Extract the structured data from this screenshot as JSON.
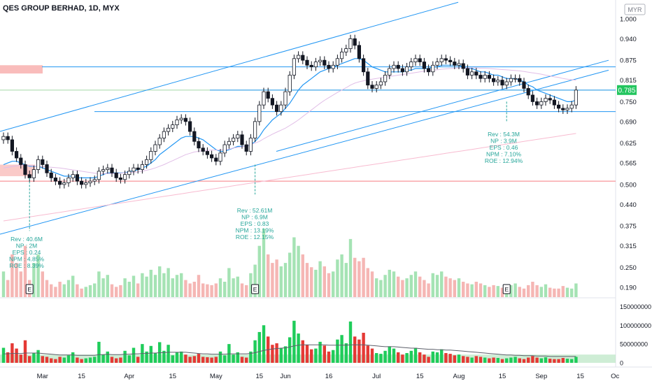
{
  "header": {
    "title": "QES GROUP BERHAD, 1D, MYX",
    "currency": "MYR"
  },
  "colors": {
    "up": "#26a69a",
    "down": "#ef5350",
    "candle_up_fill": "#ffffff",
    "candle_stroke": "#131722",
    "channel": "#2196f3",
    "ma_fast": "#2196f3",
    "ma_slow": "#e1bee7",
    "ma_long": "#f8bbd0",
    "support": "#f77c80",
    "price_tag": "#22c55e",
    "vol_up": "#a5e3b4",
    "vol_down": "#f5b6b4",
    "fund_text": "#26a69a"
  },
  "chart_data": [
    {
      "type": "candlestick",
      "title": "QES GROUP BERHAD, 1D, MYX",
      "ylim": [
        0.16,
        1.04
      ],
      "y_ticks": [
        "1.000",
        "0.940",
        "0.875",
        "0.815",
        "0.750",
        "0.690",
        "0.625",
        "0.565",
        "0.500",
        "0.440",
        "0.375",
        "0.315",
        "0.250",
        "0.190"
      ],
      "x_ticks": [
        "Mar",
        "15",
        "Apr",
        "15",
        "May",
        "15",
        "Jun",
        "16",
        "Jul",
        "15",
        "Aug",
        "15",
        "Sep",
        "15",
        "Oc"
      ],
      "last_price": "0.785",
      "close": [
        0.645,
        0.635,
        0.6,
        0.58,
        0.56,
        0.53,
        0.52,
        0.545,
        0.575,
        0.56,
        0.535,
        0.52,
        0.51,
        0.5,
        0.505,
        0.52,
        0.53,
        0.51,
        0.5,
        0.505,
        0.51,
        0.515,
        0.54,
        0.545,
        0.55,
        0.535,
        0.52,
        0.515,
        0.53,
        0.54,
        0.55,
        0.545,
        0.56,
        0.575,
        0.6,
        0.62,
        0.64,
        0.66,
        0.67,
        0.68,
        0.695,
        0.7,
        0.69,
        0.66,
        0.63,
        0.61,
        0.6,
        0.59,
        0.58,
        0.57,
        0.595,
        0.62,
        0.63,
        0.64,
        0.65,
        0.62,
        0.6,
        0.64,
        0.69,
        0.74,
        0.78,
        0.76,
        0.74,
        0.72,
        0.74,
        0.78,
        0.83,
        0.88,
        0.89,
        0.875,
        0.86,
        0.855,
        0.87,
        0.875,
        0.86,
        0.85,
        0.86,
        0.88,
        0.9,
        0.91,
        0.94,
        0.92,
        0.88,
        0.84,
        0.8,
        0.79,
        0.8,
        0.81,
        0.83,
        0.85,
        0.86,
        0.85,
        0.84,
        0.855,
        0.87,
        0.88,
        0.87,
        0.85,
        0.84,
        0.86,
        0.87,
        0.88,
        0.875,
        0.87,
        0.86,
        0.865,
        0.85,
        0.83,
        0.84,
        0.83,
        0.82,
        0.83,
        0.82,
        0.81,
        0.815,
        0.8,
        0.81,
        0.82,
        0.82,
        0.81,
        0.79,
        0.77,
        0.75,
        0.74,
        0.75,
        0.76,
        0.755,
        0.74,
        0.73,
        0.725,
        0.73,
        0.74,
        0.785
      ],
      "series": [
        {
          "name": "",
          "values": [
            0.56,
            0.565,
            0.57,
            0.57,
            0.565,
            0.56,
            0.555,
            0.555,
            0.555,
            0.55,
            0.545,
            0.54,
            0.535,
            0.53,
            0.525,
            0.525,
            0.525,
            0.52,
            0.52,
            0.52,
            0.52,
            0.52,
            0.525,
            0.53,
            0.535,
            0.535,
            0.535,
            0.535,
            0.535,
            0.54,
            0.54,
            0.545,
            0.55,
            0.555,
            0.565,
            0.575,
            0.59,
            0.6,
            0.61,
            0.62,
            0.63,
            0.64,
            0.645,
            0.645,
            0.645,
            0.64,
            0.635,
            0.625,
            0.615,
            0.605,
            0.6,
            0.6,
            0.605,
            0.61,
            0.615,
            0.615,
            0.615,
            0.62,
            0.63,
            0.645,
            0.665,
            0.68,
            0.695,
            0.705,
            0.715,
            0.73,
            0.745,
            0.765,
            0.785,
            0.8,
            0.81,
            0.82,
            0.83,
            0.84,
            0.845,
            0.85,
            0.855,
            0.86,
            0.865,
            0.87,
            0.875,
            0.88,
            0.88,
            0.875,
            0.865,
            0.855,
            0.85,
            0.845,
            0.84,
            0.84,
            0.84,
            0.84,
            0.84,
            0.845,
            0.845,
            0.85,
            0.85,
            0.85,
            0.85,
            0.855,
            0.855,
            0.86,
            0.86,
            0.86,
            0.86,
            0.86,
            0.855,
            0.85,
            0.85,
            0.845,
            0.84,
            0.84,
            0.835,
            0.83,
            0.83,
            0.825,
            0.82,
            0.82,
            0.82,
            0.815,
            0.81,
            0.8,
            0.795,
            0.785,
            0.78,
            0.775,
            0.77,
            0.765,
            0.76,
            0.755,
            0.75,
            0.75,
            0.755
          ]
        },
        {
          "name": "",
          "values": [
            0.55,
            0.552,
            0.554,
            0.556,
            0.558,
            0.558,
            0.557,
            0.556,
            0.555,
            0.554,
            0.553,
            0.552,
            0.551,
            0.55,
            0.548,
            0.546,
            0.544,
            0.542,
            0.54,
            0.538,
            0.536,
            0.534,
            0.533,
            0.533,
            0.533,
            0.533,
            0.533,
            0.534,
            0.535,
            0.536,
            0.537,
            0.538,
            0.54,
            0.543,
            0.546,
            0.55,
            0.555,
            0.56,
            0.566,
            0.572,
            0.578,
            0.584,
            0.59,
            0.594,
            0.598,
            0.6,
            0.602,
            0.603,
            0.604,
            0.604,
            0.604,
            0.605,
            0.607,
            0.61,
            0.612,
            0.614,
            0.616,
            0.62,
            0.625,
            0.63,
            0.638,
            0.645,
            0.652,
            0.658,
            0.664,
            0.67,
            0.678,
            0.686,
            0.695,
            0.705,
            0.715,
            0.725,
            0.735,
            0.745,
            0.754,
            0.762,
            0.77,
            0.778,
            0.785,
            0.792,
            0.8,
            0.806,
            0.81,
            0.813,
            0.816,
            0.818,
            0.82,
            0.822,
            0.824,
            0.826,
            0.828,
            0.83,
            0.832,
            0.834,
            0.836,
            0.838,
            0.84,
            0.842,
            0.843,
            0.845,
            0.846,
            0.848,
            0.849,
            0.85,
            0.851,
            0.852,
            0.852,
            0.852,
            0.852,
            0.852,
            0.851,
            0.851,
            0.85,
            0.849,
            0.848,
            0.847,
            0.846,
            0.845,
            0.844,
            0.843,
            0.841,
            0.839,
            0.837,
            0.835,
            0.833,
            0.83,
            0.828,
            0.825,
            0.823,
            0.82,
            0.818,
            0.816,
            0.815
          ]
        },
        {
          "name": "",
          "values": [
            0.39,
            0.392,
            0.394,
            0.396,
            0.398,
            0.4,
            0.402,
            0.404,
            0.406,
            0.408,
            0.41,
            0.412,
            0.414,
            0.416,
            0.418,
            0.42,
            0.422,
            0.424,
            0.426,
            0.428,
            0.43,
            0.432,
            0.434,
            0.436,
            0.438,
            0.44,
            0.442,
            0.444,
            0.446,
            0.448,
            0.45,
            0.452,
            0.454,
            0.456,
            0.458,
            0.46,
            0.462,
            0.464,
            0.466,
            0.468,
            0.47,
            0.472,
            0.474,
            0.476,
            0.478,
            0.48,
            0.482,
            0.484,
            0.486,
            0.488,
            0.49,
            0.492,
            0.494,
            0.496,
            0.498,
            0.5,
            0.502,
            0.504,
            0.506,
            0.508,
            0.51,
            0.512,
            0.514,
            0.516,
            0.518,
            0.52,
            0.522,
            0.524,
            0.526,
            0.528,
            0.53,
            0.532,
            0.534,
            0.536,
            0.538,
            0.54,
            0.542,
            0.544,
            0.546,
            0.548,
            0.55,
            0.552,
            0.554,
            0.556,
            0.558,
            0.56,
            0.562,
            0.564,
            0.566,
            0.568,
            0.57,
            0.572,
            0.574,
            0.576,
            0.578,
            0.58,
            0.582,
            0.584,
            0.586,
            0.588,
            0.59,
            0.592,
            0.594,
            0.596,
            0.598,
            0.6,
            0.602,
            0.604,
            0.606,
            0.608,
            0.61,
            0.612,
            0.614,
            0.616,
            0.618,
            0.62,
            0.622,
            0.624,
            0.626,
            0.628,
            0.63,
            0.632,
            0.634,
            0.636,
            0.638,
            0.64,
            0.642,
            0.644,
            0.646,
            0.648,
            0.65,
            0.652,
            0.654
          ]
        }
      ],
      "volume": [
        3,
        2,
        5,
        4,
        3,
        6,
        2,
        4,
        5,
        3,
        2,
        1.5,
        1.2,
        1.8,
        1.5,
        2,
        2.5,
        1.5,
        1,
        1.2,
        1.4,
        1.6,
        3,
        2.2,
        2.6,
        1.5,
        1.2,
        1.4,
        2.2,
        1.8,
        2.5,
        1.6,
        2.8,
        2.4,
        3.2,
        2.6,
        3.6,
        2.8,
        3.4,
        2.2,
        2.6,
        2.8,
        2,
        1.6,
        1.8,
        2.6,
        1.6,
        1.5,
        1.4,
        1.6,
        2.2,
        1.8,
        3.4,
        2.2,
        2.4,
        1.6,
        1.4,
        2.8,
        3.8,
        6,
        8,
        5,
        4,
        4.4,
        3.6,
        4,
        5.2,
        7,
        6,
        5,
        4,
        3.5,
        3.2,
        4.2,
        3.6,
        2.8,
        3,
        4.4,
        5,
        4,
        6.8,
        4.6,
        4.2,
        4.6,
        3.4,
        3,
        2.2,
        2,
        2.6,
        3.2,
        3,
        2.4,
        2,
        2.2,
        2.6,
        3,
        2.4,
        2,
        1.6,
        2.8,
        2.6,
        3,
        2.4,
        2.2,
        2,
        2.2,
        1.8,
        1.6,
        1.5,
        1.8,
        1.6,
        1.4,
        1.2,
        1.4,
        1.3,
        1.1,
        1.2,
        1.4,
        1.6,
        1.2,
        1,
        1.4,
        1.8,
        1.4,
        1.2,
        1.5,
        1.1,
        1,
        1,
        1.3,
        1.1,
        1,
        1.6
      ],
      "fundamentals": [
        {
          "marker": "E",
          "lines": [
            "Rev : 40.6M",
            "NP  : 2M",
            "EPS : 0.24",
            "NPM : 4.85%",
            "ROE : 8.39%"
          ]
        },
        {
          "marker": "E",
          "lines": [
            "Rev : 52.61M",
            "NP  : 6.9M",
            "EPS : 0.83",
            "NPM : 13.19%",
            "ROE : 12.15%"
          ]
        },
        {
          "marker": "E",
          "lines": [
            "Rev : 54.3M",
            "NP  : 3.9M",
            "EPS : 0.46",
            "NPM : 7.10%",
            "ROE : 12.94%"
          ]
        }
      ]
    },
    {
      "type": "bar",
      "y_ticks": [
        "150000000",
        "100000000",
        "50000000",
        "0"
      ],
      "ylim": [
        0,
        160000000
      ],
      "values": [
        40,
        28,
        52,
        38,
        22,
        60,
        18,
        26,
        34,
        18,
        16,
        12,
        10,
        16,
        14,
        20,
        28,
        14,
        10,
        12,
        14,
        16,
        56,
        22,
        30,
        16,
        12,
        14,
        32,
        20,
        40,
        16,
        50,
        30,
        45,
        26,
        55,
        32,
        48,
        20,
        28,
        30,
        22,
        16,
        18,
        24,
        16,
        15,
        14,
        16,
        30,
        20,
        50,
        22,
        28,
        16,
        14,
        30,
        60,
        82,
        100,
        70,
        48,
        52,
        40,
        44,
        68,
        112,
        78,
        60,
        48,
        36,
        38,
        56,
        46,
        30,
        34,
        62,
        74,
        52,
        110,
        70,
        62,
        80,
        46,
        38,
        26,
        24,
        32,
        44,
        38,
        28,
        22,
        26,
        32,
        40,
        28,
        22,
        16,
        30,
        28,
        36,
        26,
        24,
        20,
        22,
        18,
        16,
        14,
        18,
        16,
        14,
        12,
        14,
        13,
        10,
        12,
        14,
        16,
        12,
        10,
        14,
        18,
        14,
        12,
        15,
        11,
        10,
        10,
        13,
        11,
        10,
        16
      ],
      "series": [
        {
          "name": "",
          "values": [
            24,
            24,
            25,
            25,
            25,
            26,
            26,
            26,
            26,
            25,
            24,
            23,
            22,
            21,
            21,
            21,
            21,
            20,
            20,
            20,
            20,
            20,
            22,
            22,
            23,
            22,
            22,
            22,
            23,
            23,
            24,
            24,
            25,
            25,
            26,
            26,
            27,
            27,
            28,
            28,
            28,
            28,
            28,
            27,
            26,
            25,
            24,
            24,
            23,
            23,
            23,
            23,
            24,
            24,
            24,
            24,
            24,
            25,
            27,
            30,
            33,
            35,
            37,
            38,
            39,
            40,
            42,
            45,
            47,
            48,
            48,
            48,
            48,
            48,
            48,
            47,
            47,
            47,
            47,
            47,
            48,
            48,
            48,
            48,
            47,
            46,
            45,
            44,
            43,
            43,
            43,
            42,
            41,
            40,
            39,
            39,
            38,
            37,
            36,
            36,
            35,
            35,
            34,
            34,
            33,
            32,
            31,
            30,
            29,
            28,
            27,
            26,
            25,
            24,
            23,
            22,
            21,
            21,
            20,
            20,
            19,
            19,
            19,
            18,
            18,
            18,
            17,
            17,
            17,
            17,
            17,
            17,
            17
          ]
        }
      ]
    }
  ]
}
